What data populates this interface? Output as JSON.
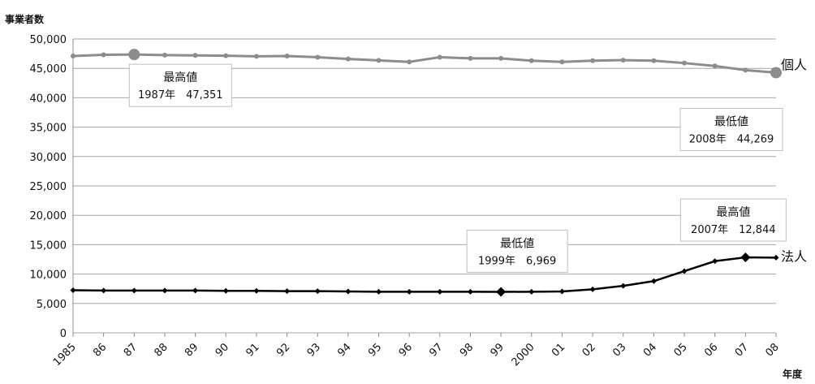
{
  "chart_data": {
    "type": "line",
    "ylabel": "事業者数",
    "xlabel": "年度",
    "ylim": [
      0,
      50000
    ],
    "yticks": [
      "0",
      "5,000",
      "10,000",
      "15,000",
      "20,000",
      "25,000",
      "30,000",
      "35,000",
      "40,000",
      "45,000",
      "50,000"
    ],
    "categories": [
      "1985",
      "86",
      "87",
      "88",
      "89",
      "90",
      "91",
      "92",
      "93",
      "94",
      "95",
      "96",
      "97",
      "98",
      "99",
      "2000",
      "01",
      "02",
      "03",
      "04",
      "05",
      "06",
      "07",
      "08"
    ],
    "grid": "horizontal",
    "series": [
      {
        "name": "個人",
        "color": "#8c8c8c",
        "values": [
          47100,
          47300,
          47351,
          47250,
          47200,
          47150,
          47050,
          47100,
          46900,
          46600,
          46350,
          46100,
          46900,
          46700,
          46700,
          46300,
          46100,
          46300,
          46400,
          46300,
          45900,
          45400,
          44700,
          44269
        ]
      },
      {
        "name": "法人",
        "color": "#000000",
        "values": [
          7250,
          7200,
          7200,
          7200,
          7200,
          7150,
          7150,
          7100,
          7100,
          7050,
          7000,
          7000,
          7000,
          7000,
          6969,
          7000,
          7050,
          7400,
          8000,
          8800,
          10500,
          12200,
          12844,
          12800
        ]
      }
    ],
    "annotations": [
      {
        "title": "最高値",
        "value": "1987年　47,351",
        "series": "個人",
        "index": 2
      },
      {
        "title": "最低値",
        "value": "2008年　44,269",
        "series": "個人",
        "index": 23
      },
      {
        "title": "最低値",
        "value": "1999年　6,969",
        "series": "法人",
        "index": 14
      },
      {
        "title": "最高値",
        "value": "2007年　12,844",
        "series": "法人",
        "index": 22
      }
    ]
  }
}
